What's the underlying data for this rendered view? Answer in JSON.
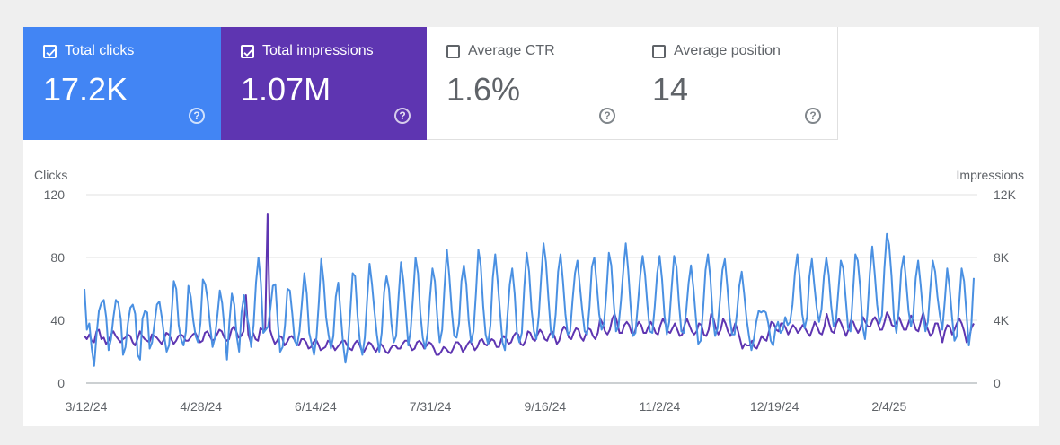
{
  "cards": [
    {
      "label": "Total clicks",
      "value": "17.2K",
      "checked": true,
      "color": "#4285f4"
    },
    {
      "label": "Total impressions",
      "value": "1.07M",
      "checked": true,
      "color": "#5e35b1"
    },
    {
      "label": "Average CTR",
      "value": "1.6%",
      "checked": false
    },
    {
      "label": "Average position",
      "value": "14",
      "checked": false
    }
  ],
  "help_symbol": "?",
  "chart_data": {
    "type": "line",
    "left_axis": {
      "title": "Clicks",
      "ticks": [
        "120",
        "80",
        "40",
        "0"
      ],
      "range": [
        0,
        120
      ]
    },
    "right_axis": {
      "title": "Impressions",
      "ticks": [
        "12K",
        "8K",
        "4K",
        "0"
      ],
      "range": [
        0,
        12000
      ]
    },
    "x_ticks": [
      "3/12/24",
      "4/28/24",
      "6/14/24",
      "7/31/24",
      "9/16/24",
      "11/2/24",
      "12/19/24",
      "2/4/25"
    ],
    "grid": true,
    "series": [
      {
        "axis": "left",
        "color": "#5e35b1",
        "values": [
          30,
          28,
          31,
          27,
          26,
          33,
          34,
          28,
          29,
          25,
          27,
          31,
          33,
          30,
          28,
          26,
          28,
          29,
          31,
          30,
          26,
          24,
          28,
          33,
          30,
          28,
          27,
          26,
          31,
          30,
          29,
          27,
          25,
          28,
          32,
          31,
          28,
          25,
          27,
          30,
          31,
          30,
          27,
          27,
          29,
          31,
          32,
          29,
          26,
          27,
          32,
          33,
          30,
          27,
          28,
          31,
          34,
          33,
          29,
          27,
          28,
          34,
          36,
          33,
          29,
          30,
          33,
          56,
          31,
          26,
          32,
          28,
          27,
          35,
          34,
          34,
          108,
          34,
          29,
          25,
          27,
          30,
          29,
          24,
          26,
          29,
          30,
          28,
          25,
          24,
          28,
          28,
          26,
          22,
          23,
          26,
          28,
          25,
          21,
          22,
          23,
          27,
          26,
          24,
          21,
          23,
          25,
          27,
          27,
          24,
          22,
          21,
          25,
          27,
          25,
          21,
          20,
          23,
          26,
          25,
          22,
          20,
          23,
          25,
          23,
          20,
          19,
          22,
          24,
          24,
          22,
          22,
          25,
          27,
          27,
          24,
          21,
          22,
          26,
          27,
          25,
          22,
          24,
          26,
          25,
          22,
          18,
          18,
          20,
          23,
          22,
          20,
          19,
          22,
          26,
          26,
          24,
          20,
          22,
          25,
          27,
          24,
          21,
          23,
          27,
          28,
          25,
          24,
          26,
          28,
          27,
          23,
          23,
          28,
          30,
          28,
          25,
          26,
          30,
          32,
          31,
          25,
          24,
          27,
          33,
          32,
          28,
          27,
          31,
          34,
          32,
          28,
          27,
          31,
          33,
          30,
          25,
          27,
          33,
          36,
          34,
          29,
          28,
          32,
          35,
          34,
          29,
          27,
          31,
          35,
          34,
          30,
          28,
          32,
          41,
          38,
          33,
          31,
          34,
          41,
          44,
          39,
          32,
          32,
          37,
          39,
          37,
          32,
          31,
          36,
          39,
          37,
          32,
          32,
          36,
          39,
          36,
          32,
          31,
          37,
          41,
          38,
          33,
          32,
          35,
          38,
          34,
          30,
          31,
          37,
          41,
          37,
          33,
          31,
          33,
          38,
          37,
          31,
          30,
          34,
          44,
          41,
          35,
          31,
          34,
          41,
          38,
          33,
          30,
          33,
          38,
          34,
          28,
          22,
          25,
          24,
          24,
          27,
          23,
          22,
          26,
          30,
          28,
          27,
          33,
          39,
          38,
          34,
          33,
          38,
          38,
          35,
          31,
          34,
          37,
          35,
          32,
          34,
          37,
          35,
          32,
          30,
          34,
          39,
          36,
          32,
          31,
          36,
          44,
          38,
          33,
          32,
          38,
          41,
          38,
          34,
          30,
          34,
          40,
          39,
          35,
          32,
          35,
          42,
          39,
          36,
          36,
          40,
          42,
          39,
          34,
          34,
          39,
          45,
          42,
          37,
          36,
          39,
          42,
          38,
          34,
          34,
          39,
          43,
          39,
          34,
          33,
          39,
          45,
          38,
          34,
          30,
          32,
          38,
          38,
          32,
          26,
          33,
          37,
          36,
          31,
          34,
          38,
          41,
          38,
          33,
          26,
          28,
          35,
          38
        ]
      },
      {
        "axis": "right",
        "color": "#4a90e2",
        "values": [
          6000,
          3400,
          3800,
          2200,
          1100,
          3100,
          4600,
          5100,
          5300,
          4200,
          2100,
          2800,
          4200,
          5300,
          5100,
          4100,
          1800,
          2300,
          3800,
          4800,
          5000,
          4400,
          1800,
          1500,
          4100,
          4600,
          4500,
          2200,
          2600,
          3800,
          5000,
          5200,
          4200,
          3000,
          2000,
          2400,
          4200,
          6500,
          6000,
          3700,
          2800,
          2400,
          3300,
          6200,
          5500,
          4000,
          3000,
          2600,
          3800,
          6600,
          6300,
          5300,
          3700,
          2300,
          2900,
          4300,
          5900,
          5100,
          3400,
          1500,
          3900,
          5700,
          5000,
          3000,
          2000,
          4500,
          5600,
          4400,
          3700,
          2300,
          3700,
          6400,
          8000,
          6400,
          3200,
          3400,
          3600,
          4800,
          6200,
          6300,
          3900,
          2000,
          2300,
          3700,
          6000,
          5900,
          4400,
          2700,
          2400,
          3300,
          5100,
          7000,
          5700,
          3200,
          2500,
          1800,
          2900,
          5200,
          7900,
          6500,
          4200,
          3100,
          2200,
          3000,
          5500,
          6400,
          4500,
          2500,
          1300,
          2300,
          4500,
          7000,
          6800,
          4300,
          2600,
          1800,
          2900,
          5400,
          7600,
          6300,
          4600,
          3100,
          2000,
          3200,
          5800,
          6800,
          6000,
          3800,
          2600,
          3000,
          5500,
          7700,
          6500,
          4500,
          2400,
          3400,
          5600,
          8000,
          7000,
          4500,
          2900,
          2200,
          3200,
          5500,
          7300,
          6500,
          4200,
          2600,
          3400,
          6100,
          8500,
          6800,
          4600,
          3000,
          2900,
          3800,
          6500,
          7500,
          6300,
          4000,
          2600,
          3300,
          5700,
          8500,
          7500,
          4900,
          3100,
          2500,
          3700,
          6700,
          8200,
          6500,
          4500,
          2600,
          2100,
          4200,
          6300,
          7300,
          5700,
          3200,
          2600,
          3200,
          6100,
          8300,
          7100,
          4700,
          3300,
          2800,
          4300,
          6800,
          8900,
          7700,
          5400,
          3300,
          2900,
          4400,
          7100,
          8200,
          6500,
          4400,
          3100,
          3300,
          5300,
          7000,
          7800,
          6200,
          4600,
          3300,
          3100,
          4900,
          7400,
          8000,
          6300,
          4400,
          3400,
          3800,
          5800,
          8300,
          7500,
          5100,
          3300,
          3600,
          5200,
          7200,
          8900,
          7200,
          4900,
          3000,
          3200,
          5000,
          6900,
          8100,
          6900,
          4900,
          3300,
          3200,
          4900,
          7000,
          8100,
          6600,
          4300,
          3100,
          3900,
          6100,
          8100,
          7400,
          5100,
          3300,
          3200,
          4600,
          6400,
          7500,
          6100,
          4200,
          2500,
          2700,
          4700,
          7200,
          8200,
          6700,
          4200,
          3000,
          3500,
          5300,
          7200,
          7900,
          6200,
          4200,
          3100,
          3100,
          4500,
          6200,
          7100,
          5700,
          4100,
          3000,
          2100,
          2800,
          3900,
          4600,
          4500,
          4600,
          4500,
          3800,
          2700,
          2400,
          3500,
          3900,
          3200,
          3400,
          4200,
          3700,
          3900,
          5000,
          7000,
          8200,
          6700,
          4400,
          3500,
          4200,
          6800,
          7900,
          6300,
          4800,
          3900,
          4700,
          6800,
          8000,
          6900,
          4900,
          3600,
          4000,
          5900,
          7800,
          7300,
          5400,
          3500,
          3300,
          5700,
          8200,
          7800,
          6100,
          3600,
          2800,
          4400,
          7000,
          8700,
          7000,
          5000,
          3800,
          4300,
          7300,
          9500,
          8800,
          6800,
          4100,
          3200,
          4700,
          7200,
          8100,
          6500,
          4600,
          3600,
          4400,
          6700,
          7800,
          6300,
          4500,
          3300,
          3900,
          6000,
          7800,
          7100,
          5500,
          4300,
          3400,
          5200,
          7300,
          6100,
          4200,
          2700,
          3000,
          5200,
          7300,
          6500,
          4400,
          2400,
          3700,
          6700
        ]
      }
    ]
  }
}
